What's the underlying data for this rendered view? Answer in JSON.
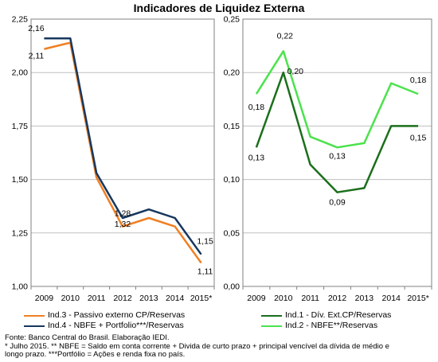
{
  "title": "Indicadores de Liquidez Externa",
  "chart_data": [
    {
      "type": "line",
      "categories": [
        "2009",
        "2010",
        "2011",
        "2012",
        "2013",
        "2014",
        "2015*"
      ],
      "ylim": [
        1.0,
        2.25
      ],
      "yticks": [
        "1,00",
        "1,25",
        "1,50",
        "1,75",
        "2,00",
        "2,25"
      ],
      "ytick_values": [
        1.0,
        1.25,
        1.5,
        1.75,
        2.0,
        2.25
      ],
      "grid": true,
      "series": [
        {
          "name": "Ind.3 - Passivo externo CP/Reservas",
          "color": "#f07f22",
          "values": [
            2.11,
            2.14,
            1.51,
            1.28,
            1.32,
            1.28,
            1.11
          ],
          "labels": [
            "2,11",
            "",
            "",
            "1,28",
            "",
            "",
            "1,11"
          ]
        },
        {
          "name": "Ind.4 - NBFE + Portfolio***/Reservas",
          "color": "#17375e",
          "values": [
            2.16,
            2.16,
            1.53,
            1.32,
            1.36,
            1.32,
            1.15
          ],
          "labels": [
            "2,16",
            "",
            "",
            "1,32",
            "",
            "",
            "1,15"
          ]
        }
      ]
    },
    {
      "type": "line",
      "categories": [
        "2009",
        "2010",
        "2011",
        "2012",
        "2013",
        "2014",
        "2015*"
      ],
      "ylim": [
        0.0,
        0.25
      ],
      "yticks": [
        "0,00",
        "0,05",
        "0,10",
        "0,15",
        "0,20",
        "0,25"
      ],
      "ytick_values": [
        0.0,
        0.05,
        0.1,
        0.15,
        0.2,
        0.25
      ],
      "grid": true,
      "series": [
        {
          "name": "Ind.1 - Dív. Ext.CP/Reservas",
          "color": "#1b6f1b",
          "values": [
            0.13,
            0.2,
            0.114,
            0.088,
            0.092,
            0.15,
            0.15
          ],
          "labels": [
            "0,13",
            "0,20",
            "",
            "0,09",
            "",
            "",
            "0,15"
          ]
        },
        {
          "name": "Ind.2 - NBFE**/Reservas",
          "color": "#4ce24c",
          "values": [
            0.18,
            0.22,
            0.14,
            0.13,
            0.134,
            0.19,
            0.18
          ],
          "labels": [
            "0,18",
            "0,22",
            "",
            "0,13",
            "",
            "",
            "0,18"
          ]
        }
      ]
    }
  ],
  "footnote": {
    "line1": "Fonte: Banco Central do Brasil. Elaboração IEDI.",
    "line2": "* Julho 2015. ** NBFE = Saldo em conta corrente + Divida de curto prazo + principal vencível da dívida de médio e",
    "line3": "longo prazo. ***Portfólio = Ações e renda fixa no país."
  }
}
